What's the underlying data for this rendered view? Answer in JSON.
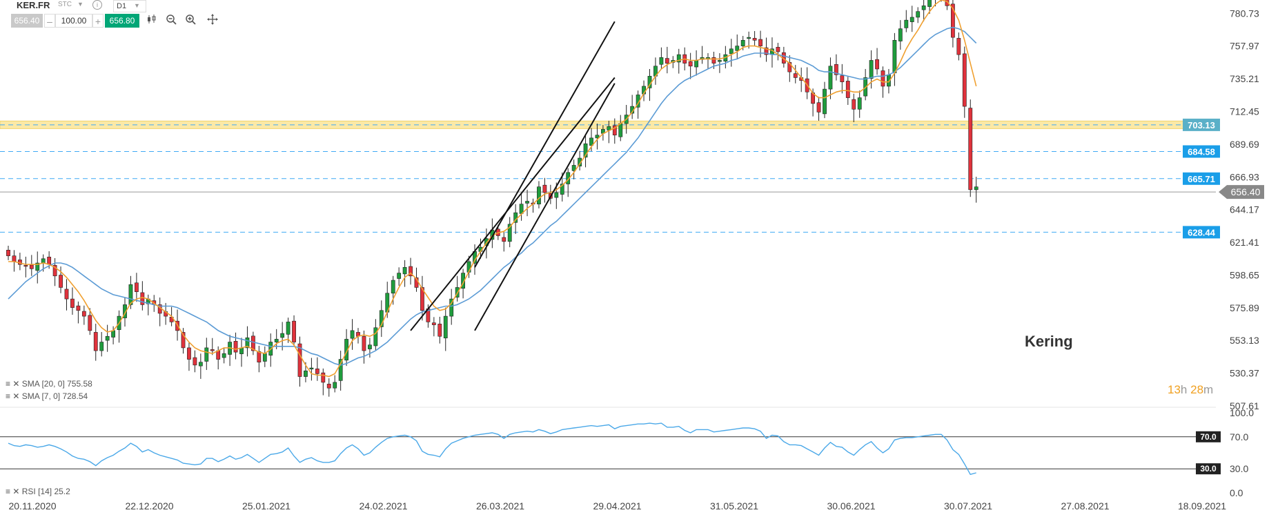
{
  "toolbar": {
    "symbol": "KER.FR",
    "mode": "STC",
    "info": "i",
    "timeframe": "D1",
    "bid": "656.40",
    "volume": "100.00",
    "ask": "656.80",
    "minus": "–",
    "plus": "+",
    "icons": [
      "candlestick-icon",
      "zoom-out-icon",
      "zoom-in-icon",
      "crosshair-icon"
    ]
  },
  "indicators": {
    "sma20": "SMA [20, 0] 755.58",
    "sma7": "SMA [7, 0] 728.54",
    "rsi": "RSI [14] 25.2"
  },
  "annotation": "Kering",
  "timer": {
    "hours": "13",
    "h": "h",
    "minutes": "28",
    "m": "m"
  },
  "colors": {
    "up": "#1f9c3d",
    "down": "#e0323c",
    "sma20": "#5b9bd5",
    "sma7": "#f0a030",
    "rsi": "#4aa8e8",
    "level_dash": "#3fa9f5",
    "level_label": "#1a9ee8",
    "zone": "#fbe9a6",
    "zone_label": "#5ab0c8",
    "price_label": "#888888"
  },
  "chart_data": {
    "type": "candlestick",
    "instrument": "KER.FR",
    "ylim": [
      507.61,
      790
    ],
    "price_ticks": [
      "780.73",
      "757.97",
      "735.21",
      "712.45",
      "689.69",
      "666.93",
      "644.17",
      "621.41",
      "598.65",
      "575.89",
      "553.13",
      "530.37",
      "507.61"
    ],
    "date_ticks": [
      "20.11.2020",
      "22.12.2020",
      "25.01.2021",
      "24.02.2021",
      "26.03.2021",
      "29.04.2021",
      "31.05.2021",
      "30.06.2021",
      "30.07.2021",
      "27.08.2021",
      "18.09.2021"
    ],
    "current_price": "656.40",
    "levels": [
      {
        "value": 703.13,
        "label": "703.13",
        "zone": [
          700.5,
          705.8
        ]
      },
      {
        "value": 684.58,
        "label": "684.58"
      },
      {
        "value": 665.71,
        "label": "665.71"
      },
      {
        "value": 628.44,
        "label": "628.44"
      }
    ],
    "closes": [
      612,
      608,
      606,
      605,
      603,
      607,
      610,
      606,
      598,
      590,
      582,
      576,
      574,
      570,
      560,
      546,
      552,
      556,
      560,
      570,
      578,
      592,
      587,
      578,
      582,
      578,
      572,
      570,
      566,
      560,
      548,
      540,
      536,
      538,
      548,
      546,
      540,
      544,
      552,
      545,
      548,
      555,
      546,
      538,
      544,
      552,
      554,
      558,
      566,
      552,
      528,
      532,
      534,
      530,
      524,
      520,
      524,
      540,
      554,
      560,
      556,
      546,
      550,
      562,
      574,
      586,
      595,
      600,
      604,
      598,
      590,
      574,
      566,
      564,
      556,
      570,
      582,
      590,
      600,
      608,
      615,
      618,
      624,
      630,
      626,
      622,
      634,
      642,
      648,
      650,
      648,
      660,
      656,
      652,
      656,
      662,
      670,
      675,
      680,
      690,
      694,
      696,
      700,
      702,
      696,
      704,
      710,
      716,
      724,
      730,
      737,
      744,
      750,
      746,
      748,
      752,
      746,
      744,
      748,
      750,
      750,
      746,
      748,
      752,
      756,
      758,
      762,
      764,
      762,
      758,
      752,
      756,
      754,
      746,
      740,
      736,
      734,
      726,
      718,
      712,
      728,
      744,
      738,
      733,
      722,
      714,
      722,
      736,
      748,
      742,
      730,
      738,
      762,
      770,
      776,
      778,
      782,
      786,
      794,
      796,
      798,
      786,
      764,
      752,
      716,
      658,
      660
    ],
    "series": [
      {
        "name": "SMA [20, 0]",
        "values": [
          582,
          586,
          590,
          594,
          597,
          600,
          603,
          605,
          607,
          607,
          606,
          604,
          601,
          598,
          595,
          592,
          589,
          587,
          585,
          584,
          583,
          582,
          581,
          580,
          579,
          578,
          577,
          577,
          577,
          576,
          574,
          572,
          570,
          568,
          566,
          563,
          560,
          558,
          556,
          555,
          554,
          553,
          552,
          551,
          550,
          549,
          549,
          549,
          549,
          549,
          548,
          546,
          544,
          543,
          541,
          539,
          537,
          536,
          537,
          539,
          541,
          542,
          544,
          546,
          549,
          552,
          556,
          560,
          564,
          568,
          571,
          573,
          574,
          575,
          576,
          577,
          577,
          578,
          580,
          582,
          585,
          588,
          592,
          596,
          600,
          604,
          607,
          611,
          614,
          618,
          621,
          625,
          629,
          633,
          636,
          640,
          644,
          648,
          652,
          656,
          660,
          664,
          668,
          672,
          676,
          680,
          684,
          689,
          694,
          700,
          706,
          712,
          718,
          723,
          727,
          731,
          734,
          736,
          738,
          740,
          742,
          744,
          745,
          746,
          748,
          749,
          751,
          752,
          753,
          753,
          753,
          752,
          752,
          751,
          750,
          749,
          748,
          746,
          744,
          741,
          740,
          740,
          739,
          738,
          737,
          736,
          735,
          735,
          736,
          737,
          737,
          738,
          740,
          743,
          747,
          751,
          755,
          759,
          763,
          766,
          768,
          770,
          771,
          770,
          768,
          764,
          760
        ]
      },
      {
        "name": "SMA [7, 0]",
        "values": [
          608,
          608,
          607,
          606,
          606,
          606,
          607,
          606,
          604,
          601,
          597,
          592,
          587,
          581,
          574,
          567,
          562,
          559,
          560,
          565,
          572,
          579,
          582,
          583,
          582,
          579,
          576,
          573,
          570,
          564,
          557,
          552,
          548,
          546,
          545,
          544,
          546,
          548,
          548,
          547,
          548,
          549,
          547,
          545,
          544,
          547,
          551,
          553,
          554,
          550,
          543,
          536,
          530,
          529,
          529,
          528,
          530,
          537,
          545,
          553,
          556,
          557,
          556,
          558,
          564,
          573,
          582,
          590,
          597,
          600,
          596,
          589,
          583,
          577,
          574,
          575,
          579,
          586,
          593,
          601,
          609,
          615,
          621,
          626,
          628,
          629,
          632,
          637,
          641,
          645,
          648,
          652,
          655,
          656,
          658,
          661,
          665,
          670,
          676,
          682,
          688,
          693,
          697,
          699,
          701,
          704,
          707,
          712,
          718,
          725,
          731,
          737,
          742,
          745,
          747,
          748,
          749,
          748,
          748,
          749,
          749,
          749,
          749,
          750,
          752,
          754,
          757,
          758,
          758,
          757,
          756,
          755,
          752,
          749,
          746,
          741,
          736,
          731,
          725,
          722,
          722,
          724,
          726,
          727,
          727,
          726,
          726,
          729,
          733,
          735,
          733,
          733,
          739,
          747,
          756,
          763,
          769,
          776,
          782,
          787,
          790,
          789,
          784,
          776,
          762,
          746,
          730
        ]
      }
    ],
    "rsi": {
      "name": "RSI [14]",
      "ylim": [
        0,
        100
      ],
      "ticks": [
        "100.0",
        "70.0",
        "30.0",
        "0.0"
      ],
      "levels": [
        {
          "value": 70,
          "label": "70.0"
        },
        {
          "value": 30,
          "label": "30.0"
        }
      ],
      "values": [
        62,
        59,
        58,
        60,
        59,
        57,
        58,
        60,
        58,
        55,
        51,
        46,
        43,
        42,
        39,
        34,
        40,
        44,
        47,
        52,
        56,
        62,
        58,
        51,
        54,
        50,
        47,
        45,
        43,
        41,
        37,
        36,
        35,
        36,
        43,
        43,
        39,
        42,
        46,
        42,
        44,
        48,
        43,
        38,
        43,
        48,
        49,
        51,
        56,
        46,
        38,
        42,
        44,
        40,
        38,
        38,
        40,
        49,
        56,
        60,
        55,
        47,
        50,
        57,
        63,
        68,
        70,
        71,
        72,
        70,
        65,
        52,
        48,
        47,
        45,
        55,
        62,
        65,
        68,
        70,
        72,
        73,
        74,
        75,
        73,
        68,
        73,
        75,
        76,
        77,
        76,
        79,
        77,
        74,
        76,
        79,
        80,
        81,
        82,
        83,
        84,
        83,
        84,
        85,
        80,
        83,
        84,
        85,
        86,
        86,
        87,
        86,
        87,
        82,
        82,
        83,
        78,
        75,
        79,
        79,
        79,
        76,
        77,
        78,
        79,
        80,
        81,
        81,
        80,
        77,
        68,
        72,
        71,
        64,
        60,
        60,
        59,
        55,
        51,
        47,
        56,
        63,
        58,
        57,
        51,
        47,
        54,
        60,
        64,
        56,
        50,
        55,
        66,
        68,
        69,
        69,
        70,
        71,
        72,
        73,
        73,
        66,
        54,
        48,
        36,
        23,
        25
      ]
    }
  }
}
